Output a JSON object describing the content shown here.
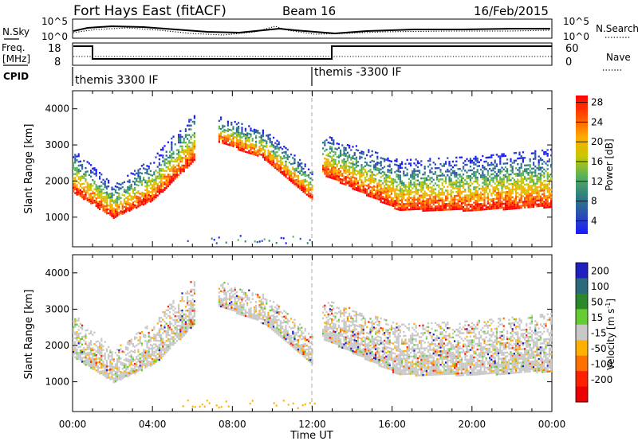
{
  "header": {
    "station": "Fort Hays East (fitACF)",
    "beam": "Beam 16",
    "date": "16/Feb/2015"
  },
  "noise_panel": {
    "left_label": "N.Sky",
    "left_ticks": [
      "10^5",
      "10^0"
    ],
    "right_label": "N.Search",
    "right_ticks": [
      "10^5",
      "10^0"
    ]
  },
  "freq_panel": {
    "left_label_line1": "Freq.",
    "left_label_line2": "[MHz]",
    "left_ticks": [
      "18",
      "8"
    ],
    "right_label": "Nave",
    "right_ticks": [
      "60",
      "0"
    ]
  },
  "cpid_panel": {
    "label": "CPID",
    "segments": [
      "themis 3300 IF",
      "themis -3300 IF"
    ]
  },
  "chart_data": [
    {
      "type": "heatmap",
      "title": "Power",
      "ylabel": "Slant Range [km]",
      "yticks": [
        "1000",
        "2000",
        "3000",
        "4000"
      ],
      "ylim": [
        180,
        4500
      ],
      "xlim": [
        "00:00",
        "24:00"
      ],
      "colorbar_label": "Power [dB]",
      "colorbar_ticks": [
        "4",
        "8",
        "12",
        "16",
        "20",
        "24",
        "28"
      ],
      "colorbar_colors": [
        "#1b1bff",
        "#2c4fb0",
        "#2f8080",
        "#59b359",
        "#c8c800",
        "#ffaa00",
        "#ff5500",
        "#ff0000"
      ],
      "echo_regions": [
        {
          "t_start": 0.0,
          "t_end": 6.1,
          "range_bottom": [
            1700,
            1000,
            1500,
            2600
          ],
          "range_top": [
            2900,
            1900,
            2700,
            3900
          ]
        },
        {
          "t_start": 7.3,
          "t_end": 12.0,
          "range_bottom": [
            3100,
            2600,
            1500
          ],
          "range_top": [
            3800,
            3400,
            2300
          ]
        },
        {
          "t_start": 12.5,
          "t_end": 24.0,
          "range_bottom": [
            2200,
            1200,
            1200,
            1300
          ],
          "range_top": [
            3300,
            2600,
            2700,
            2900
          ]
        }
      ]
    },
    {
      "type": "heatmap",
      "title": "Velocity",
      "ylabel": "Slant Range [km]",
      "yticks": [
        "1000",
        "2000",
        "3000",
        "4000"
      ],
      "ylim": [
        180,
        4500
      ],
      "xlim": [
        "00:00",
        "24:00"
      ],
      "xlabel": "Time UT",
      "xticks": [
        "00:00",
        "04:00",
        "08:00",
        "12:00",
        "16:00",
        "20:00",
        "00:00"
      ],
      "colorbar_label": "Velocity [m s",
      "colorbar_label_sup": "-1",
      "colorbar_label_end": "]",
      "colorbar_ticks": [
        "200",
        "100",
        "50",
        "15",
        "-15",
        "-50",
        "-100",
        "-200"
      ],
      "colorbar_colors": [
        "#2020c0",
        "#2a6a7a",
        "#2a8a2a",
        "#66cc33",
        "#c8c8c8",
        "#ffb000",
        "#ff7000",
        "#ff2000",
        "#ee0000"
      ],
      "echo_regions": [
        {
          "t_start": 0.0,
          "t_end": 6.1,
          "range_bottom": [
            1700,
            1000,
            1500,
            2600
          ],
          "range_top": [
            2900,
            1900,
            2700,
            3900
          ]
        },
        {
          "t_start": 7.3,
          "t_end": 12.0,
          "range_bottom": [
            3100,
            2600,
            1500
          ],
          "range_top": [
            3800,
            3400,
            2300
          ]
        },
        {
          "t_start": 12.5,
          "t_end": 24.0,
          "range_bottom": [
            2200,
            1200,
            1200,
            1300
          ],
          "range_top": [
            3300,
            2600,
            2700,
            2900
          ]
        }
      ]
    }
  ]
}
